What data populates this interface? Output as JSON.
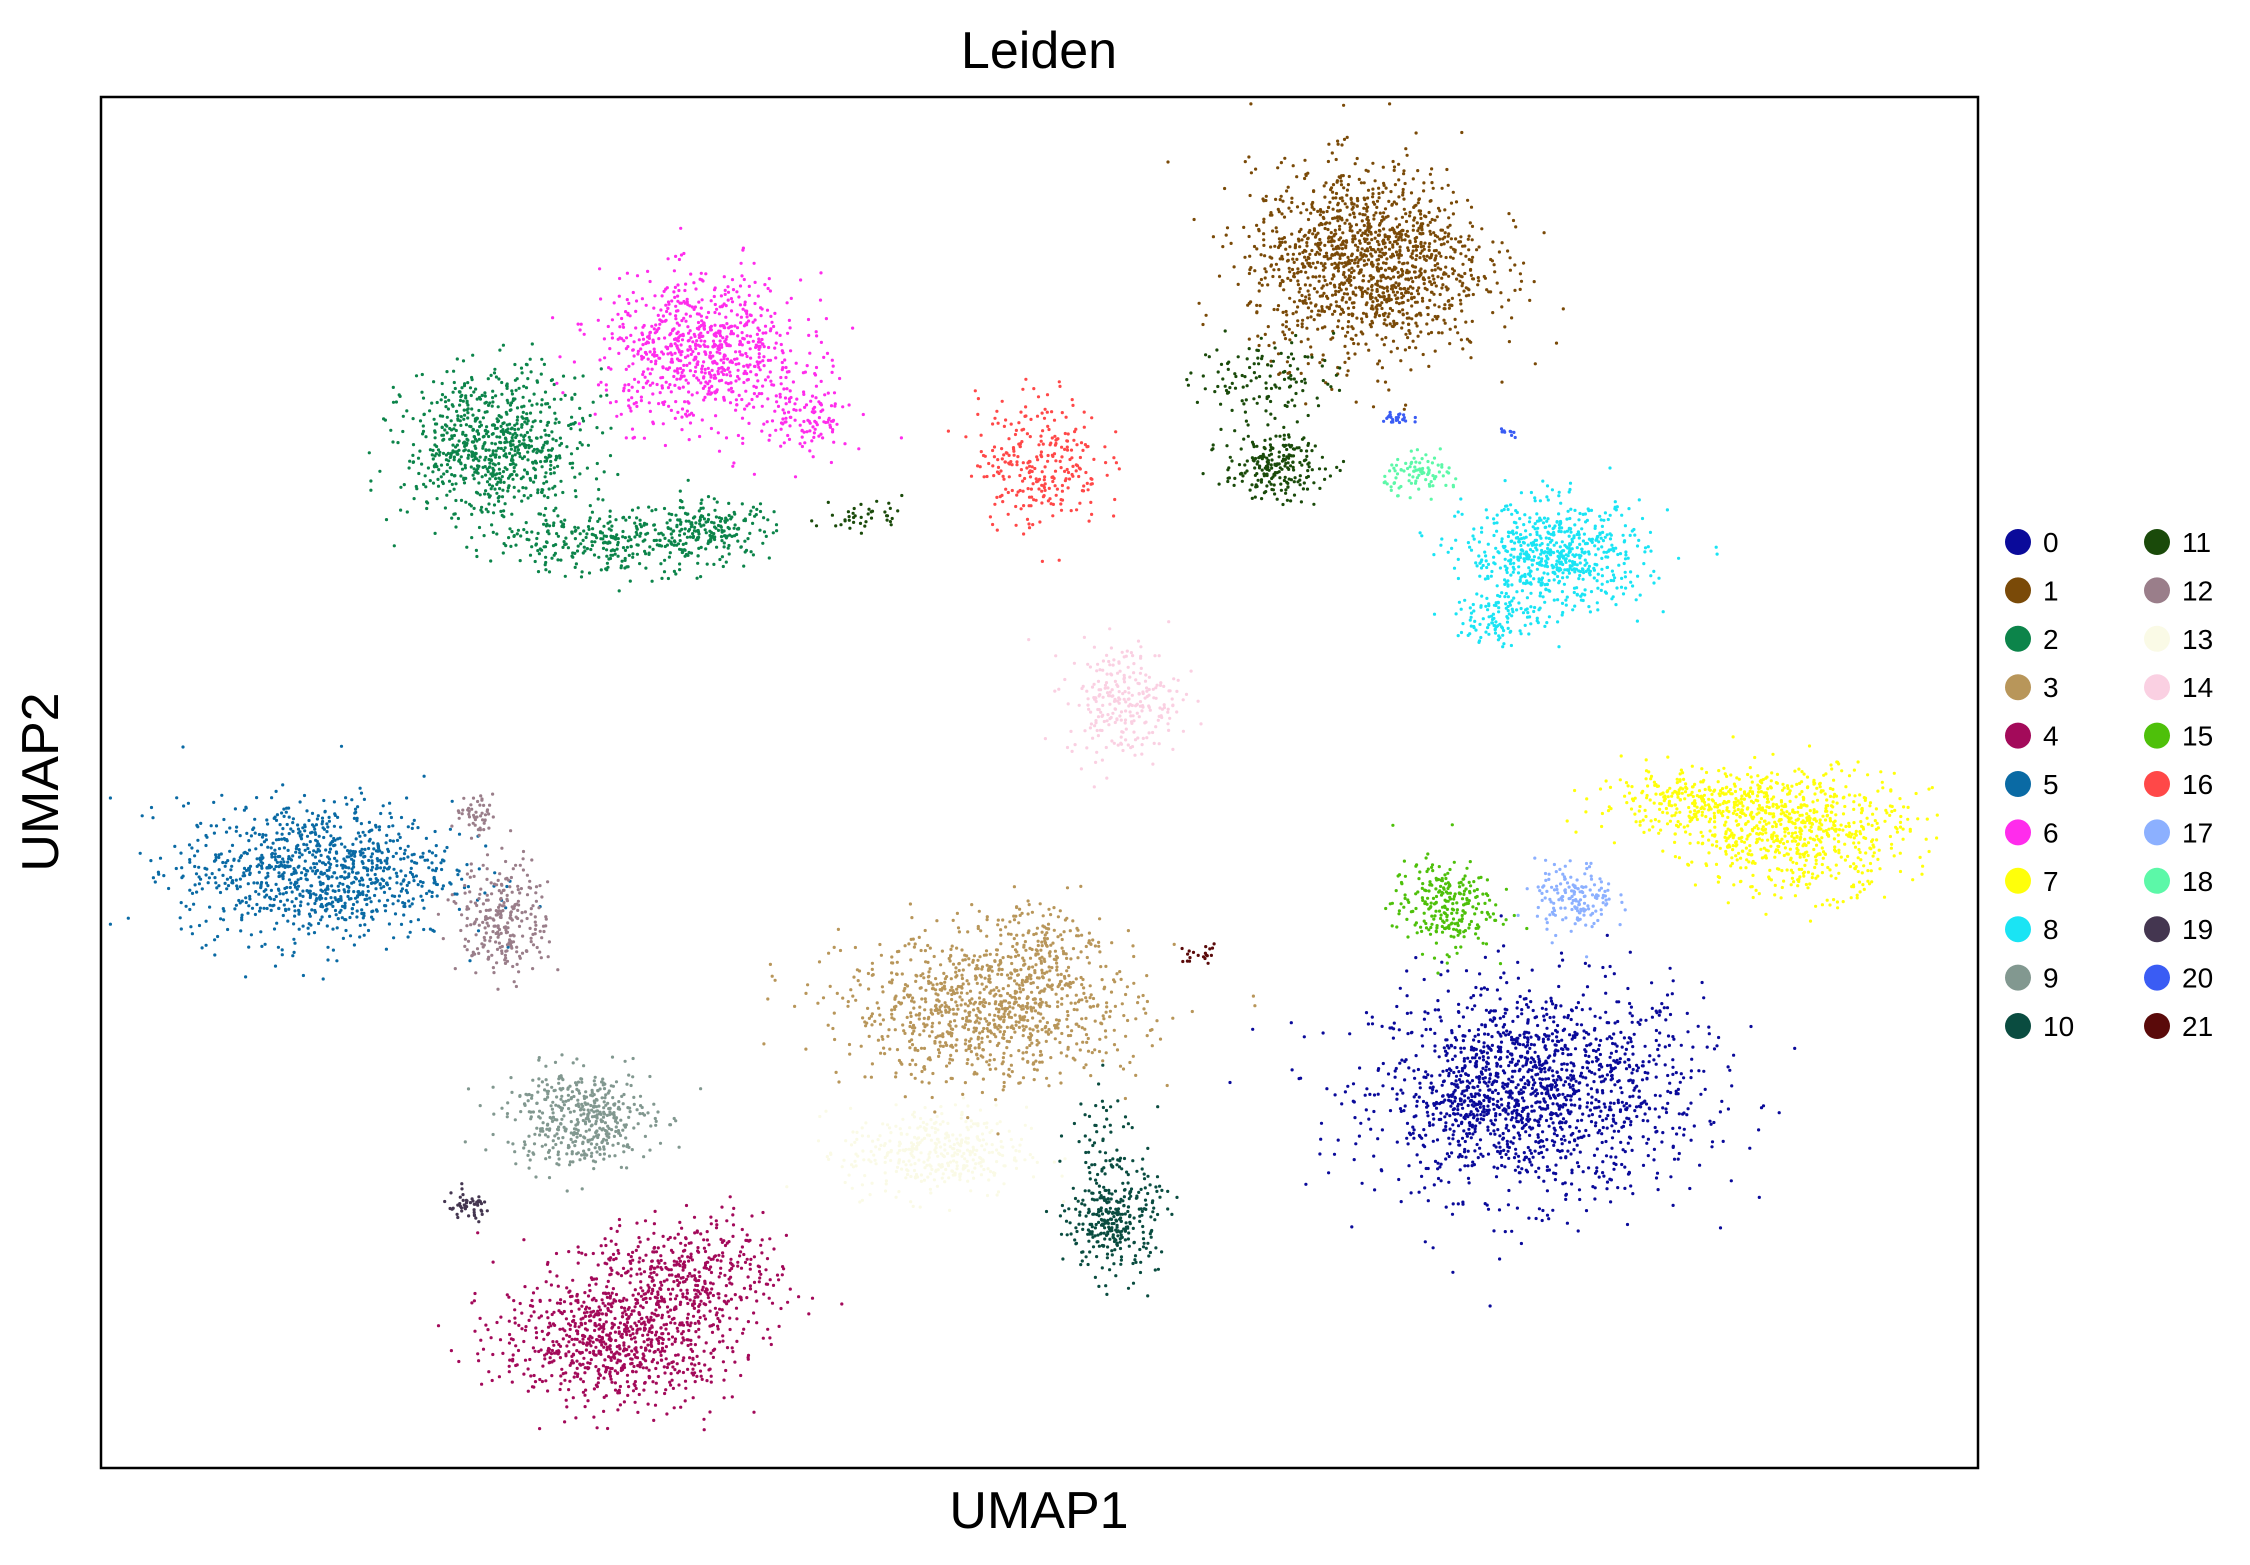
{
  "chart_data": {
    "type": "scatter",
    "title": "Leiden",
    "xlabel": "UMAP1",
    "ylabel": "UMAP2",
    "xlim": [
      0,
      100
    ],
    "ylim": [
      0,
      100
    ],
    "xticks": [],
    "yticks": [],
    "grid": false,
    "legend_placement": "right, outside plot, two columns",
    "point_size_note": "small dots",
    "series": [
      {
        "name": "0",
        "color": "#0a0a9a",
        "clusters": [
          {
            "cx": 76.5,
            "cy": 27.5,
            "sx": 5.8,
            "sy": 5.2,
            "n": 1500
          },
          {
            "cx": 72.5,
            "cy": 26.5,
            "sx": 1.8,
            "sy": 2.2,
            "n": 150
          }
        ]
      },
      {
        "name": "1",
        "color": "#7a4a08",
        "clusters": [
          {
            "cx": 67.5,
            "cy": 88.0,
            "sx": 4.2,
            "sy": 4.6,
            "n": 1400
          }
        ]
      },
      {
        "name": "2",
        "color": "#0c844a",
        "clusters": [
          {
            "cx": 21.0,
            "cy": 74.5,
            "sx": 3.2,
            "sy": 3.6,
            "n": 800
          },
          {
            "cx": 27.0,
            "cy": 67.5,
            "sx": 4.0,
            "sy": 1.6,
            "n": 300
          },
          {
            "cx": 32.5,
            "cy": 68.5,
            "sx": 2.2,
            "sy": 1.4,
            "n": 180
          }
        ]
      },
      {
        "name": "3",
        "color": "#b8965a",
        "clusters": [
          {
            "cx": 47.5,
            "cy": 33.5,
            "sx": 5.2,
            "sy": 3.6,
            "n": 1000
          },
          {
            "cx": 50.0,
            "cy": 38.5,
            "sx": 1.6,
            "sy": 2.2,
            "n": 120
          }
        ]
      },
      {
        "name": "4",
        "color": "#a30a5a",
        "clusters": [
          {
            "cx": 27.5,
            "cy": 9.5,
            "sx": 4.2,
            "sy": 3.2,
            "n": 900
          },
          {
            "cx": 31.5,
            "cy": 14.5,
            "sx": 3.5,
            "sy": 2.5,
            "n": 350
          }
        ]
      },
      {
        "name": "5",
        "color": "#0a6aa4",
        "clusters": [
          {
            "cx": 11.5,
            "cy": 43.5,
            "sx": 4.8,
            "sy": 3.4,
            "n": 1000
          }
        ]
      },
      {
        "name": "6",
        "color": "#ff2cec",
        "clusters": [
          {
            "cx": 32.0,
            "cy": 81.5,
            "sx": 3.6,
            "sy": 3.6,
            "n": 800
          },
          {
            "cx": 37.5,
            "cy": 76.5,
            "sx": 1.6,
            "sy": 2.0,
            "n": 120
          }
        ]
      },
      {
        "name": "7",
        "color": "#ffff0a",
        "clusters": [
          {
            "cx": 90.5,
            "cy": 46.5,
            "sx": 3.8,
            "sy": 3.0,
            "n": 700
          },
          {
            "cx": 85.0,
            "cy": 48.5,
            "sx": 3.6,
            "sy": 1.6,
            "n": 300
          }
        ]
      },
      {
        "name": "8",
        "color": "#1ae4f4",
        "clusters": [
          {
            "cx": 77.5,
            "cy": 66.5,
            "sx": 3.2,
            "sy": 2.6,
            "n": 650
          },
          {
            "cx": 74.5,
            "cy": 62.0,
            "sx": 1.5,
            "sy": 1.4,
            "n": 100
          }
        ]
      },
      {
        "name": "9",
        "color": "#829890",
        "clusters": [
          {
            "cx": 25.5,
            "cy": 25.5,
            "sx": 2.6,
            "sy": 2.4,
            "n": 450
          }
        ]
      },
      {
        "name": "10",
        "color": "#0a4c40",
        "clusters": [
          {
            "cx": 54.0,
            "cy": 18.0,
            "sx": 1.6,
            "sy": 2.6,
            "n": 320
          },
          {
            "cx": 53.5,
            "cy": 24.0,
            "sx": 1.2,
            "sy": 3.0,
            "n": 60
          }
        ]
      },
      {
        "name": "11",
        "color": "#1a4a0a",
        "clusters": [
          {
            "cx": 62.5,
            "cy": 73.0,
            "sx": 1.8,
            "sy": 1.6,
            "n": 220
          },
          {
            "cx": 62.0,
            "cy": 79.5,
            "sx": 2.4,
            "sy": 2.0,
            "n": 120
          },
          {
            "cx": 40.5,
            "cy": 69.5,
            "sx": 1.5,
            "sy": 0.8,
            "n": 40
          }
        ]
      },
      {
        "name": "12",
        "color": "#9a7e8a",
        "clusters": [
          {
            "cx": 21.5,
            "cy": 40.0,
            "sx": 1.6,
            "sy": 2.8,
            "n": 260
          },
          {
            "cx": 20.0,
            "cy": 47.5,
            "sx": 0.8,
            "sy": 1.0,
            "n": 50
          }
        ]
      },
      {
        "name": "13",
        "color": "#fafae6",
        "clusters": [
          {
            "cx": 44.5,
            "cy": 23.0,
            "sx": 3.2,
            "sy": 2.2,
            "n": 380
          }
        ]
      },
      {
        "name": "14",
        "color": "#fad0e2",
        "clusters": [
          {
            "cx": 54.5,
            "cy": 56.0,
            "sx": 2.0,
            "sy": 2.8,
            "n": 260
          }
        ]
      },
      {
        "name": "15",
        "color": "#4ec00a",
        "clusters": [
          {
            "cx": 71.5,
            "cy": 41.0,
            "sx": 1.8,
            "sy": 2.2,
            "n": 260
          }
        ]
      },
      {
        "name": "16",
        "color": "#ff4848",
        "clusters": [
          {
            "cx": 50.0,
            "cy": 73.5,
            "sx": 2.2,
            "sy": 3.2,
            "n": 280
          }
        ]
      },
      {
        "name": "17",
        "color": "#8cb0ff",
        "clusters": [
          {
            "cx": 78.5,
            "cy": 41.5,
            "sx": 1.4,
            "sy": 1.8,
            "n": 160
          }
        ]
      },
      {
        "name": "18",
        "color": "#5cf8a8",
        "clusters": [
          {
            "cx": 70.5,
            "cy": 72.5,
            "sx": 1.4,
            "sy": 0.9,
            "n": 90
          }
        ]
      },
      {
        "name": "19",
        "color": "#443650",
        "clusters": [
          {
            "cx": 19.5,
            "cy": 19.0,
            "sx": 0.9,
            "sy": 0.7,
            "n": 50
          }
        ]
      },
      {
        "name": "20",
        "color": "#3a5cf4",
        "clusters": [
          {
            "cx": 69.0,
            "cy": 76.5,
            "sx": 0.6,
            "sy": 0.4,
            "n": 25
          },
          {
            "cx": 75.0,
            "cy": 75.5,
            "sx": 0.3,
            "sy": 0.3,
            "n": 10
          }
        ]
      },
      {
        "name": "21",
        "color": "#5a0a0a",
        "clusters": [
          {
            "cx": 58.5,
            "cy": 37.5,
            "sx": 0.8,
            "sy": 0.5,
            "n": 20
          }
        ]
      }
    ]
  }
}
